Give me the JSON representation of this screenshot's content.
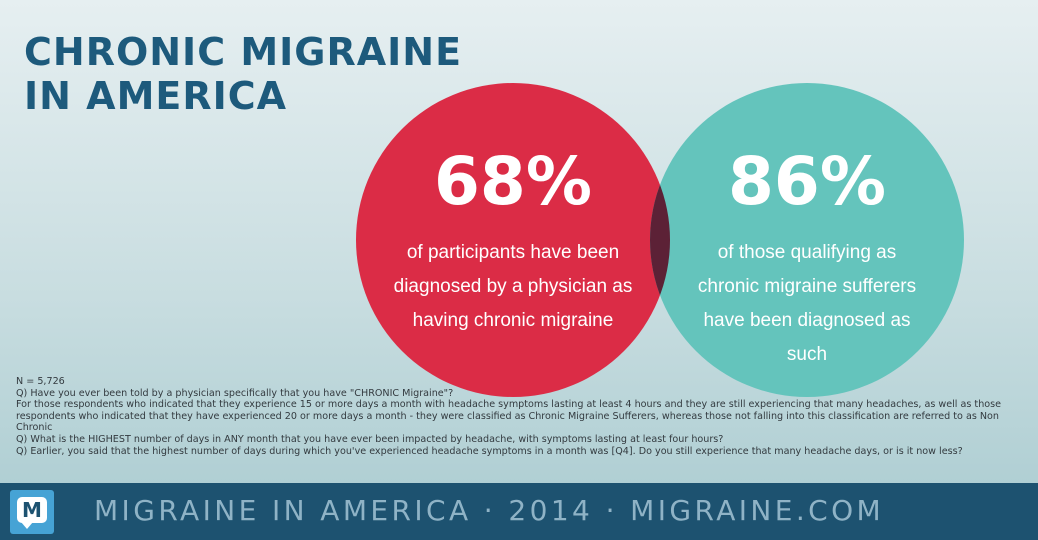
{
  "title": {
    "line1": "CHRONIC MIGRAINE",
    "line2": "IN AMERICA"
  },
  "chart_data": {
    "type": "venn",
    "stats": [
      {
        "value": "68%",
        "label": "of participants have been diagnosed by a physician as having chronic migraine",
        "color": "#db2c46"
      },
      {
        "value": "86%",
        "label": "of those qualifying as chronic migraine sufferers have been diagnosed as such",
        "color": "#64c4bc"
      }
    ],
    "overlap_color": "#5c2136"
  },
  "notes": [
    "N = 5,726",
    "Q) Have you ever been told by a physician specifically that you have \"CHRONIC Migraine\"?",
    "For those respondents who indicated that they experience 15 or more days a month with headache symptoms lasting at least 4 hours and they are still experiencing that many headaches, as well as those respondents who indicated that they have experienced 20 or more days a month - they were classified as Chronic Migraine Sufferers, whereas those not falling into this classification are referred to as Non Chronic",
    "Q) What is the HIGHEST number of days in ANY month that you have ever been impacted by headache, with symptoms lasting at least four hours?",
    "Q) Earlier, you said that the highest number of days during which you've experienced headache symptoms in a month was [Q4]. Do you still experience that many headache days, or is it now less?"
  ],
  "footer": {
    "logo_letter": "M",
    "text": "MIGRAINE IN AMERICA · 2014 · MIGRAINE.COM"
  }
}
